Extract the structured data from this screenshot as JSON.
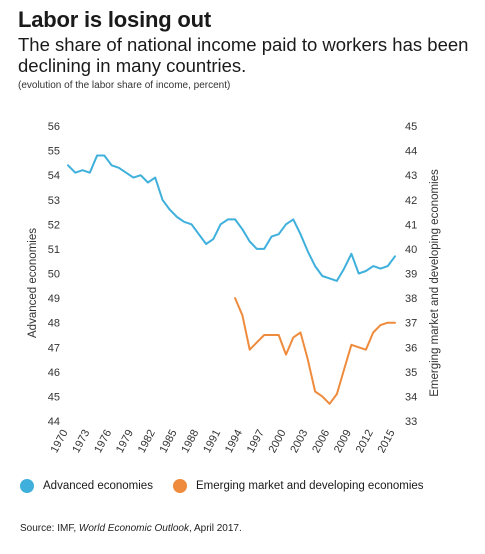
{
  "header": {
    "title": "Labor is losing out",
    "subtitle": "The share of national income paid to workers has been declining in many countries.",
    "note": "(evolution of the labor share of income, percent)"
  },
  "colors": {
    "advanced": "#3fb0dc",
    "emerging": "#ef8b3c"
  },
  "legend": {
    "advanced": "Advanced economies",
    "emerging": "Emerging market and developing economies"
  },
  "source": {
    "prefix": "Source: IMF, ",
    "publication": "World Economic Outlook",
    "suffix": ", April 2017."
  },
  "chart_data": {
    "type": "line",
    "title": "Labor is losing out",
    "xlabel": "",
    "ylabel": "Advanced economies",
    "y2label": "Emerging market and developing economies",
    "xlim": [
      1970,
      2015
    ],
    "ylim": [
      44,
      56
    ],
    "y2lim": [
      33,
      45
    ],
    "x_ticks": [
      1970,
      1973,
      1976,
      1979,
      1982,
      1985,
      1988,
      1991,
      1994,
      1997,
      2000,
      2003,
      2006,
      2009,
      2012,
      2015
    ],
    "y_ticks": [
      44,
      45,
      46,
      47,
      48,
      49,
      50,
      51,
      52,
      53,
      54,
      55,
      56
    ],
    "y2_ticks": [
      33,
      34,
      35,
      36,
      37,
      38,
      39,
      40,
      41,
      42,
      43,
      44,
      45
    ],
    "legend_position": "bottom",
    "grid": false,
    "series": [
      {
        "name": "Advanced economies",
        "axis": "left",
        "x": [
          1970,
          1971,
          1972,
          1973,
          1974,
          1975,
          1976,
          1977,
          1978,
          1979,
          1980,
          1981,
          1982,
          1983,
          1984,
          1985,
          1986,
          1987,
          1988,
          1989,
          1990,
          1991,
          1992,
          1993,
          1994,
          1995,
          1996,
          1997,
          1998,
          1999,
          2000,
          2001,
          2002,
          2003,
          2004,
          2005,
          2006,
          2007,
          2008,
          2009,
          2010,
          2011,
          2012,
          2013,
          2014,
          2015
        ],
        "values": [
          54.4,
          54.1,
          54.2,
          54.1,
          54.8,
          54.8,
          54.4,
          54.3,
          54.1,
          53.9,
          54.0,
          53.7,
          53.9,
          53.0,
          52.6,
          52.3,
          52.1,
          52.0,
          51.6,
          51.2,
          51.4,
          52.0,
          52.2,
          52.2,
          51.8,
          51.3,
          51.0,
          51.0,
          51.5,
          51.6,
          52.0,
          52.2,
          51.6,
          50.9,
          50.3,
          49.9,
          49.8,
          49.7,
          50.2,
          50.8,
          50.0,
          50.1,
          50.3,
          50.2,
          50.3,
          50.7
        ]
      },
      {
        "name": "Emerging market and developing economies",
        "axis": "right",
        "x": [
          1993,
          1994,
          1995,
          1996,
          1997,
          1998,
          1999,
          2000,
          2001,
          2002,
          2003,
          2004,
          2005,
          2006,
          2007,
          2008,
          2009,
          2010,
          2011,
          2012,
          2013,
          2014,
          2015
        ],
        "values": [
          38.0,
          37.3,
          35.9,
          36.2,
          36.5,
          36.5,
          36.5,
          35.7,
          36.4,
          36.6,
          35.5,
          34.2,
          34.0,
          33.7,
          34.1,
          35.1,
          36.1,
          36.0,
          35.9,
          36.6,
          36.9,
          37.0,
          37.0
        ]
      }
    ]
  }
}
